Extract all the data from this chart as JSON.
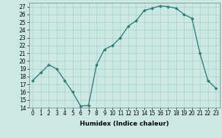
{
  "x": [
    0,
    1,
    2,
    3,
    4,
    5,
    6,
    7,
    8,
    9,
    10,
    11,
    12,
    13,
    14,
    15,
    16,
    17,
    18,
    19,
    20,
    21,
    22,
    23
  ],
  "y": [
    17.5,
    18.5,
    19.5,
    19.0,
    17.5,
    16.0,
    14.2,
    14.3,
    19.5,
    21.5,
    22.0,
    23.0,
    24.5,
    25.2,
    26.5,
    26.8,
    27.1,
    27.0,
    26.8,
    26.0,
    25.5,
    21.0,
    17.5,
    16.5
  ],
  "line_color": "#2d7d6e",
  "marker": "D",
  "markersize": 2.0,
  "linewidth": 1.0,
  "bg_color": "#cce8e5",
  "grid_color": "#aacfcc",
  "xlabel": "Humidex (Indice chaleur)",
  "ylim": [
    14,
    27.5
  ],
  "yticks": [
    14,
    15,
    16,
    17,
    18,
    19,
    20,
    21,
    22,
    23,
    24,
    25,
    26,
    27
  ],
  "xticks": [
    0,
    1,
    2,
    3,
    4,
    5,
    6,
    7,
    8,
    9,
    10,
    11,
    12,
    13,
    14,
    15,
    16,
    17,
    18,
    19,
    20,
    21,
    22,
    23
  ],
  "xtick_labels": [
    "0",
    "1",
    "2",
    "3",
    "4",
    "5",
    "6",
    "7",
    "8",
    "9",
    "10",
    "11",
    "12",
    "13",
    "14",
    "15",
    "16",
    "17",
    "18",
    "19",
    "20",
    "21",
    "22",
    "23"
  ],
  "xlabel_fontsize": 6.5,
  "tick_fontsize": 5.5
}
